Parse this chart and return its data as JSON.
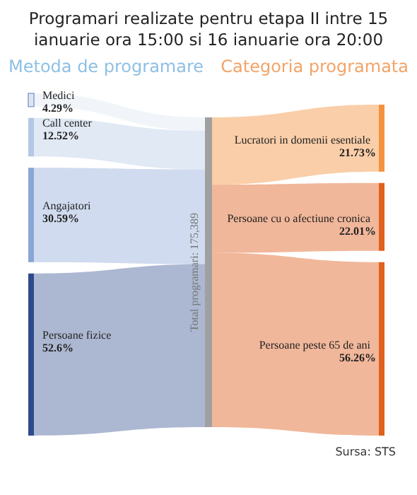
{
  "chart_data": {
    "type": "other",
    "title": "Programari realizate pentru etapa II intre 15 ianuarie ora 15:00 si 16 ianuarie ora 20:00",
    "categories": [
      "Medici",
      "Call center",
      "Angajatori",
      "Persoane fizice",
      "Lucratori in domenii esentiale",
      "Persoane cu o afectiune cronica",
      "Persoane peste 65 de ani"
    ],
    "series": [
      {
        "name": "Metoda de programare",
        "color": "#8ec0e4",
        "values": [
          4.29,
          12.52,
          30.59,
          52.6,
          null,
          null,
          null
        ],
        "value_labels": [
          "4.29%",
          "12.52%",
          "30.59%",
          "52.6%",
          null,
          null,
          null
        ],
        "colors": [
          "#dde6f0",
          "#b4c8e4",
          "#8aa6d6",
          "#2f4a8c",
          null,
          null,
          null
        ]
      },
      {
        "name": "Categoria programata",
        "color": "#f2a468",
        "values": [
          null,
          null,
          null,
          null,
          21.73,
          22.01,
          56.26
        ],
        "value_labels": [
          null,
          null,
          null,
          null,
          "21.73%",
          "22.01%",
          "56.26%"
        ],
        "colors": [
          null,
          null,
          null,
          null,
          "#f5923e",
          "#e0601e",
          "#e0601e"
        ]
      }
    ],
    "annotations": [
      "Total programari: 175,389",
      "Sursa: STS"
    ]
  }
}
